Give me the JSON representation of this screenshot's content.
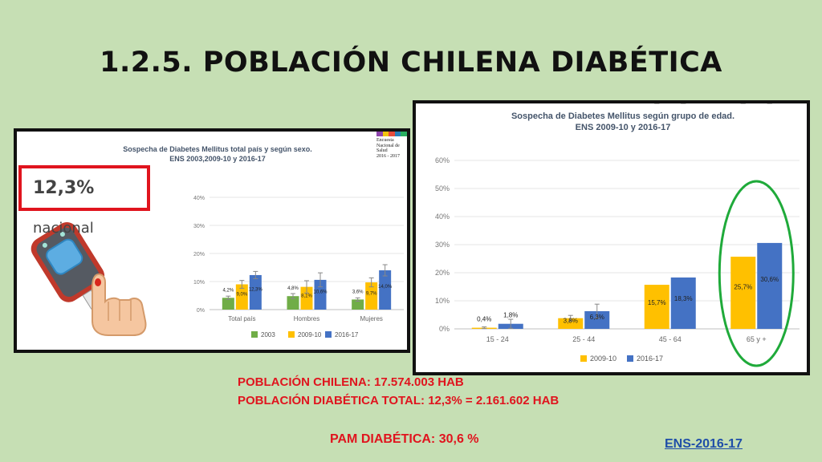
{
  "slide": {
    "title": "1.2.5. POBLACIÓN CHILENA DIABÉTICA",
    "info_poblacion": "POBLACIÓN CHILENA: 17.574.003 HAB",
    "info_diabetica": "POBLACIÓN DIABÉTICA TOTAL: 12,3% = 2.161.602 HAB",
    "pam": "PAM DIABÉTICA: 30,6 %",
    "source_link": "ENS-2016-17",
    "callout_value": "12,3%",
    "callout_suffix": " nacional",
    "logo_lines": [
      "Encuesta",
      "Nacional de",
      "Salud",
      "2016 - 2017"
    ],
    "icons": [
      "glucometer-icon",
      "finger-drop-icon",
      "green-circle-highlight"
    ],
    "colors": {
      "background": "#c6dfb4",
      "accent_red": "#e0141e",
      "s2003": "#70ad47",
      "s2009": "#ffc000",
      "s2016": "#4472c4",
      "circle": "#1faa3a"
    }
  },
  "chart_data": [
    {
      "type": "bar",
      "title": "Sospecha de Diabetes Mellitus total país y según sexo.",
      "subtitle": "ENS 2003,2009-10 y 2016-17",
      "categories": [
        "Total país",
        "Hombres",
        "Mujeres"
      ],
      "series": [
        {
          "name": "2003",
          "values": [
            4.2,
            4.8,
            3.6
          ],
          "labels": [
            "4,2%",
            "4,8%",
            "3,6%"
          ]
        },
        {
          "name": "2009-10",
          "values": [
            9.0,
            8.1,
            9.7
          ],
          "labels": [
            "9,0%",
            "8,1%",
            "9,7%"
          ]
        },
        {
          "name": "2016-17",
          "values": [
            12.3,
            10.6,
            14.0
          ],
          "labels": [
            "12,3%",
            "10,6%",
            "14,0%"
          ]
        }
      ],
      "error_bars": true,
      "yticks": [
        "0%",
        "10%",
        "20%",
        "30%",
        "40%"
      ],
      "ylim": [
        0,
        40
      ],
      "legend": "bottom"
    },
    {
      "type": "bar",
      "title": "Sospecha de Diabetes Mellitus según grupo de edad.",
      "subtitle": "ENS 2009-10 y 2016-17",
      "categories": [
        "15 - 24",
        "25 - 44",
        "45 - 64",
        "65 y +"
      ],
      "series": [
        {
          "name": "2009-10",
          "values": [
            0.4,
            3.8,
            15.7,
            25.7
          ],
          "labels": [
            "0,4%",
            "3,8%",
            "15,7%",
            "25,7%"
          ]
        },
        {
          "name": "2016-17",
          "values": [
            1.8,
            6.3,
            18.3,
            30.6
          ],
          "labels": [
            "1,8%",
            "6,3%",
            "18,3%",
            "30,6%"
          ]
        }
      ],
      "error_bars": true,
      "yticks": [
        "0%",
        "10%",
        "20%",
        "30%",
        "40%",
        "50%",
        "60%"
      ],
      "ylim": [
        0,
        60
      ],
      "legend": "bottom"
    }
  ]
}
